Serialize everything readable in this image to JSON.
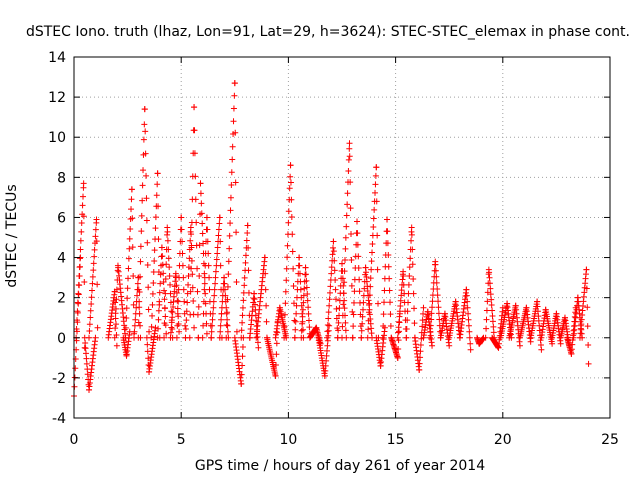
{
  "chart_data": {
    "type": "scatter",
    "title": "dSTEC Iono. truth (lhaz, Lon=91, Lat=29, h=3624): STEC-STEC_elemax in phase cont.",
    "xlabel": "GPS time / hours of day 261 of year 2014",
    "ylabel": "dSTEC  / TECUs",
    "xlim": [
      0,
      25
    ],
    "ylim": [
      -4,
      14
    ],
    "xticks": [
      0,
      5,
      10,
      15,
      20,
      25
    ],
    "yticks": [
      -4,
      -2,
      0,
      2,
      4,
      6,
      8,
      10,
      12,
      14
    ],
    "xtick_labels": [
      "0",
      "5",
      "10",
      "15",
      "20",
      "25"
    ],
    "ytick_labels": [
      "-4",
      "-2",
      "0",
      "2",
      "4",
      "6",
      "8",
      "10",
      "12",
      "14"
    ],
    "grid": true,
    "marker": "+",
    "color": "#ff0000",
    "arcs": [
      {
        "t0": 0.0,
        "t1": 0.3,
        "peak_x": 0.0,
        "peak_y": -2.9,
        "end_y": 4.0
      },
      {
        "t0": 0.1,
        "t1": 0.5,
        "peak_x": 0.45,
        "peak_y": 7.7,
        "end_y": -0.5
      },
      {
        "t0": 0.5,
        "t1": 1.0,
        "peak_x": 0.7,
        "peak_y": -2.6,
        "end_y": 0.0
      },
      {
        "t0": 0.7,
        "t1": 1.1,
        "peak_x": 1.05,
        "peak_y": 5.9,
        "end_y": 0.5
      },
      {
        "t0": 1.6,
        "t1": 2.0,
        "peak_x": 1.9,
        "peak_y": 2.3,
        "end_y": -0.4
      },
      {
        "t0": 1.9,
        "t1": 2.4,
        "peak_x": 2.05,
        "peak_y": 3.6,
        "end_y": 0.0
      },
      {
        "t0": 2.3,
        "t1": 2.6,
        "peak_x": 2.45,
        "peak_y": -0.9,
        "end_y": 0.3
      },
      {
        "t0": 2.4,
        "t1": 2.8,
        "peak_x": 2.7,
        "peak_y": 7.4,
        "end_y": 0.2
      },
      {
        "t0": 2.8,
        "t1": 3.1,
        "peak_x": 3.0,
        "peak_y": 3.0,
        "end_y": 0.0
      },
      {
        "t0": 3.0,
        "t1": 3.5,
        "peak_x": 3.3,
        "peak_y": 11.4,
        "end_y": 0.3
      },
      {
        "t0": 3.4,
        "t1": 3.8,
        "peak_x": 3.5,
        "peak_y": -1.7,
        "end_y": 0.5
      },
      {
        "t0": 3.6,
        "t1": 4.0,
        "peak_x": 3.9,
        "peak_y": 8.2,
        "end_y": 0.0
      },
      {
        "t0": 3.9,
        "t1": 4.3,
        "peak_x": 4.1,
        "peak_y": 4.5,
        "end_y": 0.2
      },
      {
        "t0": 4.2,
        "t1": 4.6,
        "peak_x": 4.35,
        "peak_y": 5.5,
        "end_y": 0.0
      },
      {
        "t0": 4.5,
        "t1": 4.9,
        "peak_x": 4.75,
        "peak_y": 3.2,
        "end_y": 0.3
      },
      {
        "t0": 4.8,
        "t1": 5.2,
        "peak_x": 5.0,
        "peak_y": 6.0,
        "end_y": 0.0
      },
      {
        "t0": 5.2,
        "t1": 5.6,
        "peak_x": 5.45,
        "peak_y": 5.5,
        "end_y": 0.5
      },
      {
        "t0": 5.4,
        "t1": 5.8,
        "peak_x": 5.6,
        "peak_y": 11.5,
        "end_y": 0.0
      },
      {
        "t0": 5.8,
        "t1": 6.2,
        "peak_x": 5.9,
        "peak_y": 7.7,
        "end_y": 0.2
      },
      {
        "t0": 6.0,
        "t1": 6.4,
        "peak_x": 6.2,
        "peak_y": 6.0,
        "end_y": 0.0
      },
      {
        "t0": 6.4,
        "t1": 6.9,
        "peak_x": 6.8,
        "peak_y": 6.0,
        "end_y": 0.0
      },
      {
        "t0": 6.8,
        "t1": 7.2,
        "peak_x": 7.0,
        "peak_y": 3.0,
        "end_y": 0.0
      },
      {
        "t0": 7.1,
        "t1": 7.6,
        "peak_x": 7.5,
        "peak_y": 12.7,
        "end_y": 0.3
      },
      {
        "t0": 7.5,
        "t1": 7.9,
        "peak_x": 7.8,
        "peak_y": -2.3,
        "end_y": 0.0
      },
      {
        "t0": 7.8,
        "t1": 8.2,
        "peak_x": 8.1,
        "peak_y": 5.6,
        "end_y": 0.0
      },
      {
        "t0": 8.2,
        "t1": 8.6,
        "peak_x": 8.4,
        "peak_y": 2.2,
        "end_y": -0.5
      },
      {
        "t0": 8.5,
        "t1": 9.0,
        "peak_x": 8.9,
        "peak_y": 4.0,
        "end_y": 0.0
      },
      {
        "t0": 9.0,
        "t1": 9.5,
        "peak_x": 9.4,
        "peak_y": -1.9,
        "end_y": 0.8
      },
      {
        "t0": 9.4,
        "t1": 9.9,
        "peak_x": 9.6,
        "peak_y": 1.5,
        "end_y": 0.0
      },
      {
        "t0": 9.8,
        "t1": 10.3,
        "peak_x": 10.1,
        "peak_y": 8.6,
        "end_y": 0.0
      },
      {
        "t0": 10.3,
        "t1": 10.7,
        "peak_x": 10.5,
        "peak_y": 4.0,
        "end_y": 0.0
      },
      {
        "t0": 10.6,
        "t1": 11.0,
        "peak_x": 10.8,
        "peak_y": 3.5,
        "end_y": 0.2
      },
      {
        "t0": 11.0,
        "t1": 11.5,
        "peak_x": 11.3,
        "peak_y": 0.5,
        "end_y": -0.3
      },
      {
        "t0": 11.4,
        "t1": 11.9,
        "peak_x": 11.7,
        "peak_y": -1.9,
        "end_y": 0.6
      },
      {
        "t0": 11.8,
        "t1": 12.3,
        "peak_x": 12.1,
        "peak_y": 4.8,
        "end_y": 0.0
      },
      {
        "t0": 12.3,
        "t1": 12.7,
        "peak_x": 12.5,
        "peak_y": 3.7,
        "end_y": 0.0
      },
      {
        "t0": 12.5,
        "t1": 13.0,
        "peak_x": 12.85,
        "peak_y": 9.7,
        "end_y": 0.0
      },
      {
        "t0": 13.0,
        "t1": 13.4,
        "peak_x": 13.2,
        "peak_y": 5.8,
        "end_y": 0.0
      },
      {
        "t0": 13.4,
        "t1": 13.9,
        "peak_x": 13.6,
        "peak_y": 3.5,
        "end_y": 0.0
      },
      {
        "t0": 13.7,
        "t1": 14.2,
        "peak_x": 14.1,
        "peak_y": 8.5,
        "end_y": 0.0
      },
      {
        "t0": 14.1,
        "t1": 14.5,
        "peak_x": 14.3,
        "peak_y": -1.4,
        "end_y": 0.5
      },
      {
        "t0": 14.4,
        "t1": 14.8,
        "peak_x": 14.6,
        "peak_y": 5.9,
        "end_y": 0.0
      },
      {
        "t0": 14.8,
        "t1": 15.2,
        "peak_x": 15.1,
        "peak_y": -1.0,
        "end_y": 1.2
      },
      {
        "t0": 15.1,
        "t1": 15.5,
        "peak_x": 15.35,
        "peak_y": 3.3,
        "end_y": 0.0
      },
      {
        "t0": 15.5,
        "t1": 15.9,
        "peak_x": 15.75,
        "peak_y": 5.5,
        "end_y": 0.0
      },
      {
        "t0": 15.9,
        "t1": 16.3,
        "peak_x": 16.1,
        "peak_y": -1.6,
        "end_y": 1.5
      },
      {
        "t0": 16.3,
        "t1": 16.7,
        "peak_x": 16.5,
        "peak_y": 1.3,
        "end_y": -0.4
      },
      {
        "t0": 16.6,
        "t1": 17.1,
        "peak_x": 16.85,
        "peak_y": 3.8,
        "end_y": 0.0
      },
      {
        "t0": 17.1,
        "t1": 17.5,
        "peak_x": 17.3,
        "peak_y": 1.2,
        "end_y": -0.4
      },
      {
        "t0": 17.5,
        "t1": 18.0,
        "peak_x": 17.8,
        "peak_y": 1.8,
        "end_y": 0.0
      },
      {
        "t0": 18.0,
        "t1": 18.5,
        "peak_x": 18.3,
        "peak_y": 2.4,
        "end_y": -0.6
      },
      {
        "t0": 18.8,
        "t1": 19.1,
        "peak_x": 18.9,
        "peak_y": -0.3,
        "end_y": 0.0
      },
      {
        "t0": 19.2,
        "t1": 19.6,
        "peak_x": 19.35,
        "peak_y": 3.4,
        "end_y": 0.0
      },
      {
        "t0": 19.5,
        "t1": 20.0,
        "peak_x": 19.8,
        "peak_y": -0.5,
        "end_y": 1.5
      },
      {
        "t0": 19.9,
        "t1": 20.4,
        "peak_x": 20.2,
        "peak_y": 1.7,
        "end_y": 0.0
      },
      {
        "t0": 20.3,
        "t1": 20.8,
        "peak_x": 20.6,
        "peak_y": 1.6,
        "end_y": -0.4
      },
      {
        "t0": 20.8,
        "t1": 21.3,
        "peak_x": 21.1,
        "peak_y": 1.5,
        "end_y": -0.2
      },
      {
        "t0": 21.3,
        "t1": 21.8,
        "peak_x": 21.6,
        "peak_y": 1.8,
        "end_y": -0.6
      },
      {
        "t0": 21.8,
        "t1": 22.3,
        "peak_x": 22.0,
        "peak_y": 1.4,
        "end_y": -0.3
      },
      {
        "t0": 22.3,
        "t1": 22.7,
        "peak_x": 22.5,
        "peak_y": 1.2,
        "end_y": -0.3
      },
      {
        "t0": 22.7,
        "t1": 23.1,
        "peak_x": 22.9,
        "peak_y": 1.0,
        "end_y": -0.4
      },
      {
        "t0": 23.0,
        "t1": 23.4,
        "peak_x": 23.2,
        "peak_y": -0.8,
        "end_y": 1.5
      },
      {
        "t0": 23.3,
        "t1": 23.7,
        "peak_x": 23.5,
        "peak_y": 2.0,
        "end_y": 0.0
      },
      {
        "t0": 23.6,
        "t1": 24.0,
        "peak_x": 23.9,
        "peak_y": 3.4,
        "end_y": -1.3
      }
    ]
  }
}
